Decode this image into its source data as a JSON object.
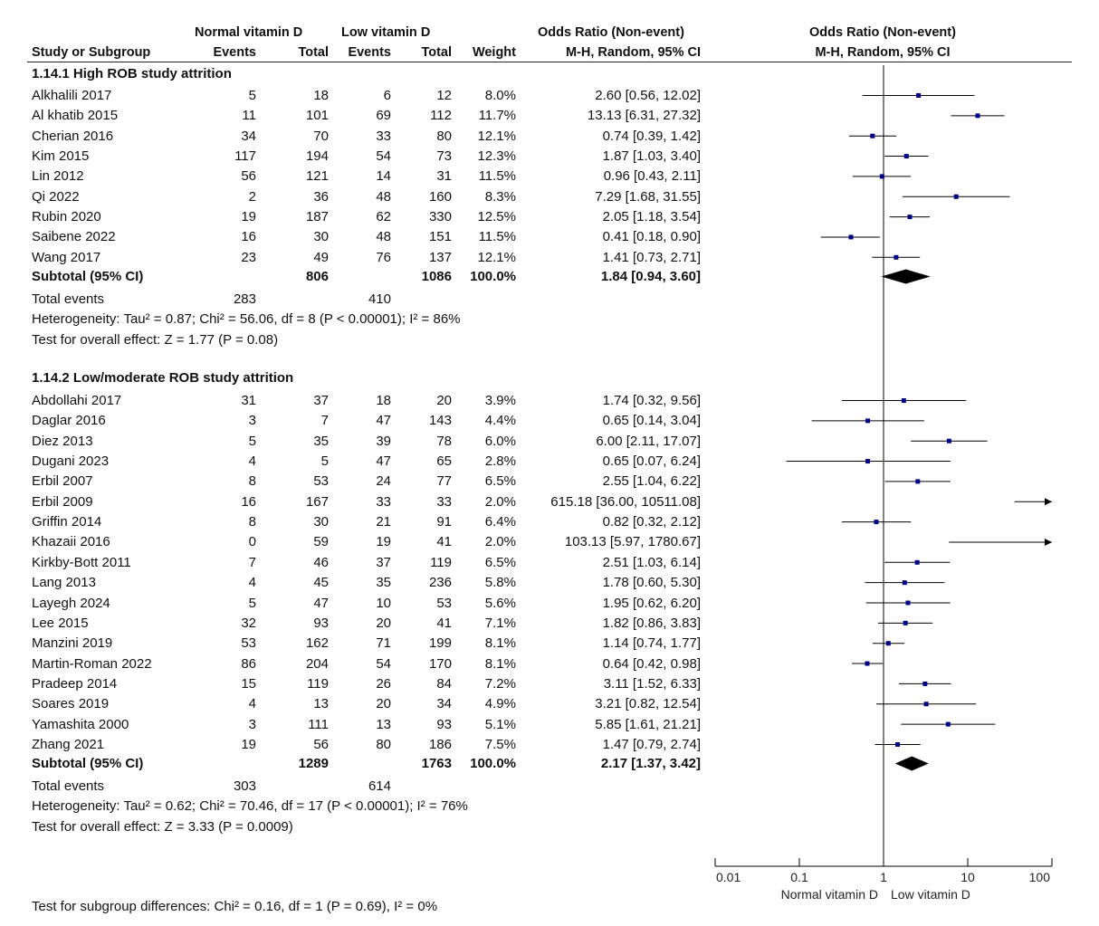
{
  "header": {
    "group1": "Normal vitamin D",
    "group2": "Low vitamin D",
    "or_col": "Odds Ratio (Non-event)",
    "or_plot": "Odds Ratio (Non-event)",
    "study": "Study or Subgroup",
    "events1": "Events",
    "total1": "Total",
    "events2": "Events",
    "total2": "Total",
    "weight": "Weight",
    "method_col": "M-H, Random, 95% CI",
    "method_plot": "M-H, Random, 95% CI"
  },
  "subgroups": [
    {
      "title": "1.14.1 High ROB study attrition",
      "studies": [
        {
          "name": "Alkhalili 2017",
          "e1": "5",
          "t1": "18",
          "e2": "6",
          "t2": "12",
          "weight": "8.0%",
          "ci": "2.60 [0.56, 12.02]"
        },
        {
          "name": "Al khatib 2015",
          "e1": "11",
          "t1": "101",
          "e2": "69",
          "t2": "112",
          "weight": "11.7%",
          "ci": "13.13 [6.31, 27.32]"
        },
        {
          "name": "Cherian 2016",
          "e1": "34",
          "t1": "70",
          "e2": "33",
          "t2": "80",
          "weight": "12.1%",
          "ci": "0.74 [0.39, 1.42]"
        },
        {
          "name": "Kim 2015",
          "e1": "117",
          "t1": "194",
          "e2": "54",
          "t2": "73",
          "weight": "12.3%",
          "ci": "1.87 [1.03, 3.40]"
        },
        {
          "name": "Lin 2012",
          "e1": "56",
          "t1": "121",
          "e2": "14",
          "t2": "31",
          "weight": "11.5%",
          "ci": "0.96 [0.43, 2.11]"
        },
        {
          "name": "Qi 2022",
          "e1": "2",
          "t1": "36",
          "e2": "48",
          "t2": "160",
          "weight": "8.3%",
          "ci": "7.29 [1.68, 31.55]"
        },
        {
          "name": "Rubin 2020",
          "e1": "19",
          "t1": "187",
          "e2": "62",
          "t2": "330",
          "weight": "12.5%",
          "ci": "2.05 [1.18, 3.54]"
        },
        {
          "name": "Saibene 2022",
          "e1": "16",
          "t1": "30",
          "e2": "48",
          "t2": "151",
          "weight": "11.5%",
          "ci": "0.41 [0.18, 0.90]"
        },
        {
          "name": "Wang 2017",
          "e1": "23",
          "t1": "49",
          "e2": "76",
          "t2": "137",
          "weight": "12.1%",
          "ci": "1.41 [0.73, 2.71]"
        }
      ],
      "subtotal": {
        "label": "Subtotal (95% CI)",
        "t1": "806",
        "t2": "1086",
        "weight": "100.0%",
        "ci": "1.84 [0.94, 3.60]"
      },
      "total_events": {
        "label": "Total events",
        "e1": "283",
        "e2": "410"
      },
      "heterogeneity": "Heterogeneity: Tau² = 0.87; Chi² = 56.06, df = 8 (P < 0.00001); I² = 86%",
      "overall": "Test for overall effect: Z = 1.77 (P = 0.08)"
    },
    {
      "title": "1.14.2 Low/moderate ROB study attrition",
      "studies": [
        {
          "name": "Abdollahi 2017",
          "e1": "31",
          "t1": "37",
          "e2": "18",
          "t2": "20",
          "weight": "3.9%",
          "ci": "1.74 [0.32, 9.56]"
        },
        {
          "name": "Daglar 2016",
          "e1": "3",
          "t1": "7",
          "e2": "47",
          "t2": "143",
          "weight": "4.4%",
          "ci": "0.65 [0.14, 3.04]"
        },
        {
          "name": "Diez 2013",
          "e1": "5",
          "t1": "35",
          "e2": "39",
          "t2": "78",
          "weight": "6.0%",
          "ci": "6.00 [2.11, 17.07]"
        },
        {
          "name": "Dugani 2023",
          "e1": "4",
          "t1": "5",
          "e2": "47",
          "t2": "65",
          "weight": "2.8%",
          "ci": "0.65 [0.07, 6.24]"
        },
        {
          "name": "Erbil 2007",
          "e1": "8",
          "t1": "53",
          "e2": "24",
          "t2": "77",
          "weight": "6.5%",
          "ci": "2.55 [1.04, 6.22]"
        },
        {
          "name": "Erbil 2009",
          "e1": "16",
          "t1": "167",
          "e2": "33",
          "t2": "33",
          "weight": "2.0%",
          "ci": "615.18 [36.00, 10511.08]"
        },
        {
          "name": "Griffin 2014",
          "e1": "8",
          "t1": "30",
          "e2": "21",
          "t2": "91",
          "weight": "6.4%",
          "ci": "0.82 [0.32, 2.12]"
        },
        {
          "name": "Khazaii 2016",
          "e1": "0",
          "t1": "59",
          "e2": "19",
          "t2": "41",
          "weight": "2.0%",
          "ci": "103.13 [5.97, 1780.67]"
        },
        {
          "name": "Kirkby-Bott 2011",
          "e1": "7",
          "t1": "46",
          "e2": "37",
          "t2": "119",
          "weight": "6.5%",
          "ci": "2.51 [1.03, 6.14]"
        },
        {
          "name": "Lang 2013",
          "e1": "4",
          "t1": "45",
          "e2": "35",
          "t2": "236",
          "weight": "5.8%",
          "ci": "1.78 [0.60, 5.30]"
        },
        {
          "name": "Layegh 2024",
          "e1": "5",
          "t1": "47",
          "e2": "10",
          "t2": "53",
          "weight": "5.6%",
          "ci": "1.95 [0.62, 6.20]"
        },
        {
          "name": "Lee 2015",
          "e1": "32",
          "t1": "93",
          "e2": "20",
          "t2": "41",
          "weight": "7.1%",
          "ci": "1.82 [0.86, 3.83]"
        },
        {
          "name": "Manzini 2019",
          "e1": "53",
          "t1": "162",
          "e2": "71",
          "t2": "199",
          "weight": "8.1%",
          "ci": "1.14 [0.74, 1.77]"
        },
        {
          "name": "Martin-Roman 2022",
          "e1": "86",
          "t1": "204",
          "e2": "54",
          "t2": "170",
          "weight": "8.1%",
          "ci": "0.64 [0.42, 0.98]"
        },
        {
          "name": "Pradeep 2014",
          "e1": "15",
          "t1": "119",
          "e2": "26",
          "t2": "84",
          "weight": "7.2%",
          "ci": "3.11 [1.52, 6.33]"
        },
        {
          "name": "Soares 2019",
          "e1": "4",
          "t1": "13",
          "e2": "20",
          "t2": "34",
          "weight": "4.9%",
          "ci": "3.21 [0.82, 12.54]"
        },
        {
          "name": "Yamashita 2000",
          "e1": "3",
          "t1": "111",
          "e2": "13",
          "t2": "93",
          "weight": "5.1%",
          "ci": "5.85 [1.61, 21.21]"
        },
        {
          "name": "Zhang 2021",
          "e1": "19",
          "t1": "56",
          "e2": "80",
          "t2": "186",
          "weight": "7.5%",
          "ci": "1.47 [0.79, 2.74]"
        }
      ],
      "subtotal": {
        "label": "Subtotal (95% CI)",
        "t1": "1289",
        "t2": "1763",
        "weight": "100.0%",
        "ci": "2.17 [1.37, 3.42]"
      },
      "total_events": {
        "label": "Total events",
        "e1": "303",
        "e2": "614"
      },
      "heterogeneity": "Heterogeneity: Tau² = 0.62; Chi² = 70.46, df = 17 (P < 0.00001); I² = 76%",
      "overall": "Test for overall effect: Z = 3.33 (P = 0.0009)"
    }
  ],
  "subgroup_test": "Test for subgroup differences: Chi² = 0.16, df = 1 (P = 0.69), I² = 0%",
  "chart_data": {
    "type": "forest",
    "scale": "log",
    "xlim": [
      0.01,
      100
    ],
    "ticks": [
      "0.01",
      "0.1",
      "1",
      "10",
      "100"
    ],
    "tick_values": [
      0.01,
      0.1,
      1,
      10,
      100
    ],
    "null_value": 1,
    "favours_left": "Normal vitamin D",
    "favours_right": "Low vitamin D",
    "marker_color": "#00008b",
    "groups": [
      {
        "points": [
          {
            "or": 2.6,
            "lo": 0.56,
            "hi": 12.02
          },
          {
            "or": 13.13,
            "lo": 6.31,
            "hi": 27.32
          },
          {
            "or": 0.74,
            "lo": 0.39,
            "hi": 1.42
          },
          {
            "or": 1.87,
            "lo": 1.03,
            "hi": 3.4
          },
          {
            "or": 0.96,
            "lo": 0.43,
            "hi": 2.11
          },
          {
            "or": 7.29,
            "lo": 1.68,
            "hi": 31.55
          },
          {
            "or": 2.05,
            "lo": 1.18,
            "hi": 3.54
          },
          {
            "or": 0.41,
            "lo": 0.18,
            "hi": 0.9
          },
          {
            "or": 1.41,
            "lo": 0.73,
            "hi": 2.71
          }
        ],
        "pooled": {
          "or": 1.84,
          "lo": 0.94,
          "hi": 3.6
        }
      },
      {
        "points": [
          {
            "or": 1.74,
            "lo": 0.32,
            "hi": 9.56
          },
          {
            "or": 0.65,
            "lo": 0.14,
            "hi": 3.04
          },
          {
            "or": 6.0,
            "lo": 2.11,
            "hi": 17.07
          },
          {
            "or": 0.65,
            "lo": 0.07,
            "hi": 6.24
          },
          {
            "or": 2.55,
            "lo": 1.04,
            "hi": 6.22
          },
          {
            "or": 615.18,
            "lo": 36.0,
            "hi": 10511.08
          },
          {
            "or": 0.82,
            "lo": 0.32,
            "hi": 2.12
          },
          {
            "or": 103.13,
            "lo": 5.97,
            "hi": 1780.67
          },
          {
            "or": 2.51,
            "lo": 1.03,
            "hi": 6.14
          },
          {
            "or": 1.78,
            "lo": 0.6,
            "hi": 5.3
          },
          {
            "or": 1.95,
            "lo": 0.62,
            "hi": 6.2
          },
          {
            "or": 1.82,
            "lo": 0.86,
            "hi": 3.83
          },
          {
            "or": 1.14,
            "lo": 0.74,
            "hi": 1.77
          },
          {
            "or": 0.64,
            "lo": 0.42,
            "hi": 0.98
          },
          {
            "or": 3.11,
            "lo": 1.52,
            "hi": 6.33
          },
          {
            "or": 3.21,
            "lo": 0.82,
            "hi": 12.54
          },
          {
            "or": 5.85,
            "lo": 1.61,
            "hi": 21.21
          },
          {
            "or": 1.47,
            "lo": 0.79,
            "hi": 2.74
          }
        ],
        "pooled": {
          "or": 2.17,
          "lo": 1.37,
          "hi": 3.42
        }
      }
    ]
  }
}
